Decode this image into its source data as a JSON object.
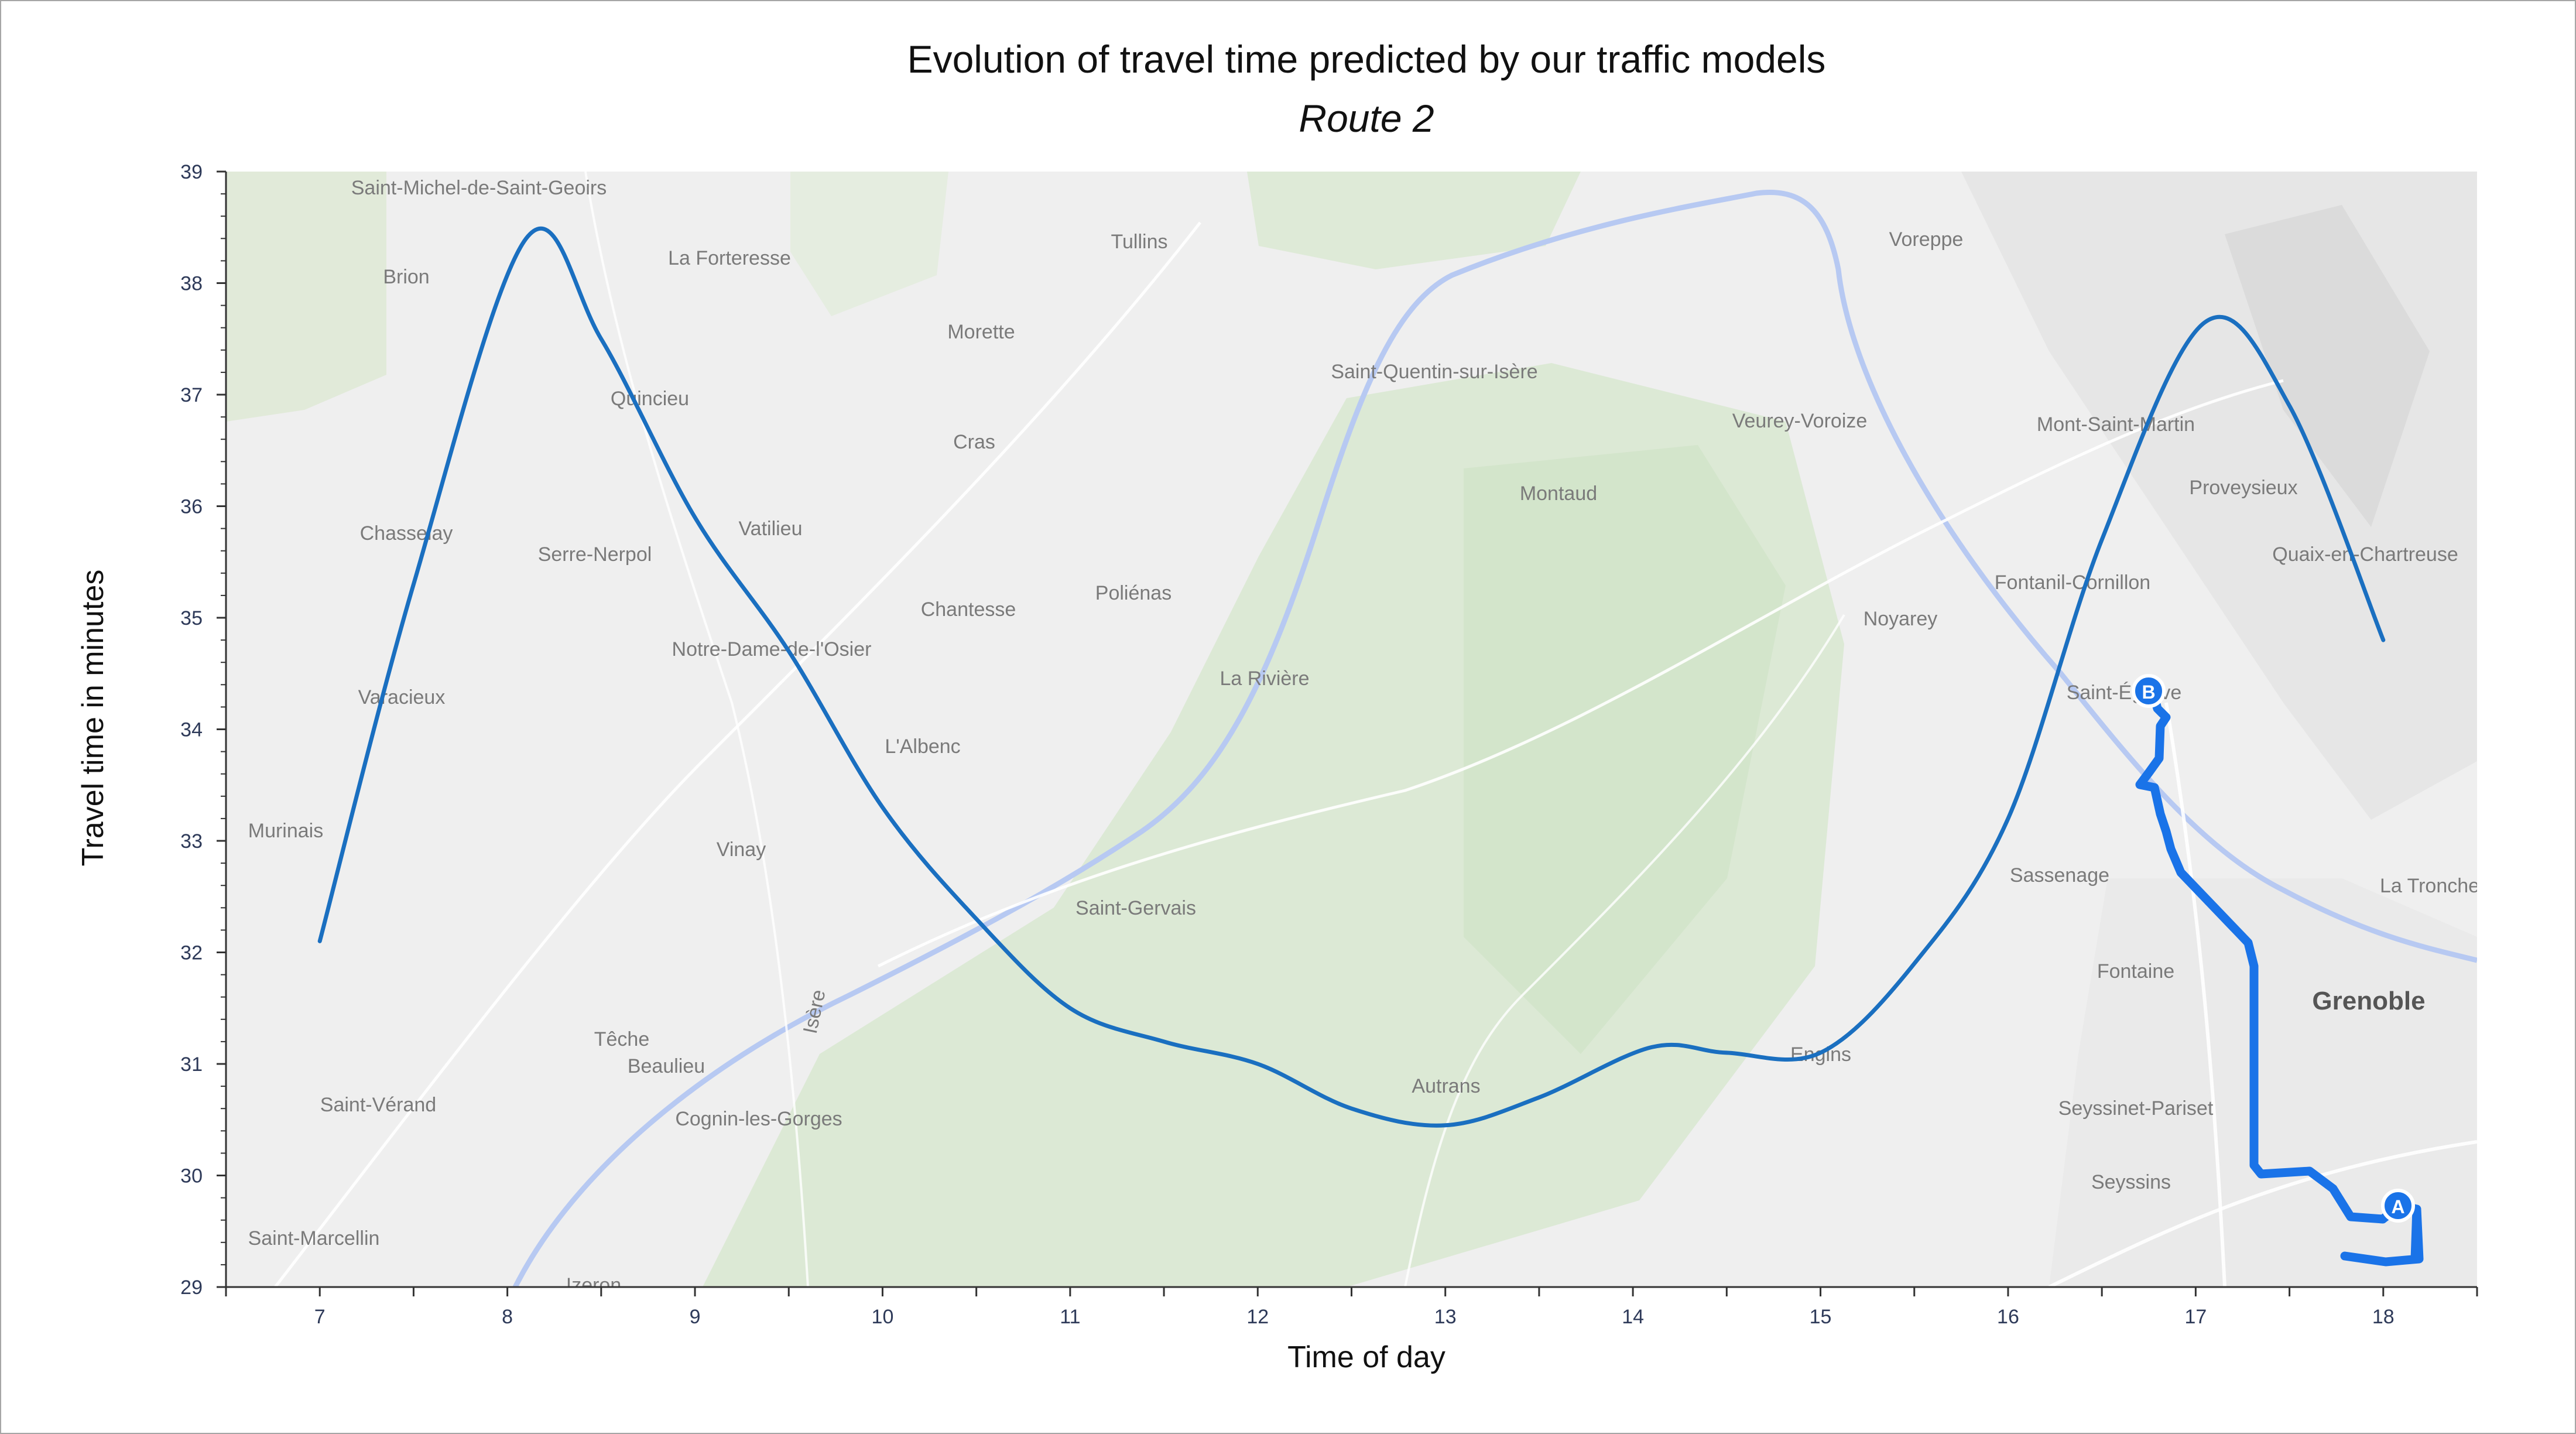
{
  "chart_data": {
    "type": "line",
    "title": "Evolution of travel time predicted by our traffic models",
    "subtitle": "Route 2",
    "xlabel": "Time of day",
    "ylabel": "Travel time in minutes",
    "xlim": [
      6.5,
      18.5
    ],
    "ylim": [
      29,
      39
    ],
    "xticks": [
      "7",
      "8",
      "9",
      "10",
      "11",
      "12",
      "13",
      "14",
      "15",
      "16",
      "17",
      "18"
    ],
    "yticks": [
      "29",
      "30",
      "31",
      "32",
      "33",
      "34",
      "35",
      "36",
      "37",
      "38",
      "39"
    ],
    "series": [
      {
        "color": "#1a6fc0",
        "x": [
          7.0,
          7.5,
          8.1,
          8.5,
          9.0,
          9.5,
          10.0,
          10.5,
          11.0,
          11.5,
          12.0,
          12.5,
          13.0,
          13.5,
          14.1,
          14.5,
          15.0,
          15.5,
          16.0,
          16.5,
          17.05,
          17.5,
          18.0
        ],
        "y": [
          32.1,
          35.3,
          38.4,
          37.5,
          35.9,
          34.7,
          33.3,
          32.3,
          31.5,
          31.2,
          31.0,
          30.6,
          30.45,
          30.7,
          31.15,
          31.1,
          31.1,
          31.9,
          33.2,
          35.7,
          37.65,
          36.9,
          34.8
        ]
      }
    ]
  },
  "map": {
    "route_start_marker": "A",
    "route_end_marker": "B",
    "route_color": "#1a73e8",
    "places": [
      {
        "name": "Saint-Michel-de-Saint-Geoirs"
      },
      {
        "name": "La Forteresse"
      },
      {
        "name": "Tullins"
      },
      {
        "name": "Voreppe"
      },
      {
        "name": "Brion"
      },
      {
        "name": "Morette"
      },
      {
        "name": "Saint-Quentin-sur-Isère"
      },
      {
        "name": "Quincieu"
      },
      {
        "name": "Cras"
      },
      {
        "name": "Veurey-Voroize"
      },
      {
        "name": "Mont-Saint-Martin"
      },
      {
        "name": "Montaud"
      },
      {
        "name": "Proveysieux"
      },
      {
        "name": "Chasselay"
      },
      {
        "name": "Serre-Nerpol"
      },
      {
        "name": "Vatilieu"
      },
      {
        "name": "Quaix-en-Chartreuse"
      },
      {
        "name": "Fontanil-Cornillon"
      },
      {
        "name": "Poliénas"
      },
      {
        "name": "Chantesse"
      },
      {
        "name": "Noyarey"
      },
      {
        "name": "Notre-Dame-de-l'Osier"
      },
      {
        "name": "La Rivière"
      },
      {
        "name": "Saint-Égrève"
      },
      {
        "name": "Varacieux"
      },
      {
        "name": "L'Albenc"
      },
      {
        "name": "Murinais"
      },
      {
        "name": "Vinay"
      },
      {
        "name": "Sassenage"
      },
      {
        "name": "La Tronche"
      },
      {
        "name": "Saint-Gervais"
      },
      {
        "name": "Fontaine"
      },
      {
        "name": "Grenoble"
      },
      {
        "name": "Têche"
      },
      {
        "name": "Beaulieu"
      },
      {
        "name": "Engins"
      },
      {
        "name": "Saint-Vérand"
      },
      {
        "name": "Autrans"
      },
      {
        "name": "Cognin-les-Gorges"
      },
      {
        "name": "Seyssinet-Pariset"
      },
      {
        "name": "Seyssins"
      },
      {
        "name": "Saint-Marcellin"
      },
      {
        "name": "Izeron"
      },
      {
        "name": "Isère"
      }
    ]
  }
}
